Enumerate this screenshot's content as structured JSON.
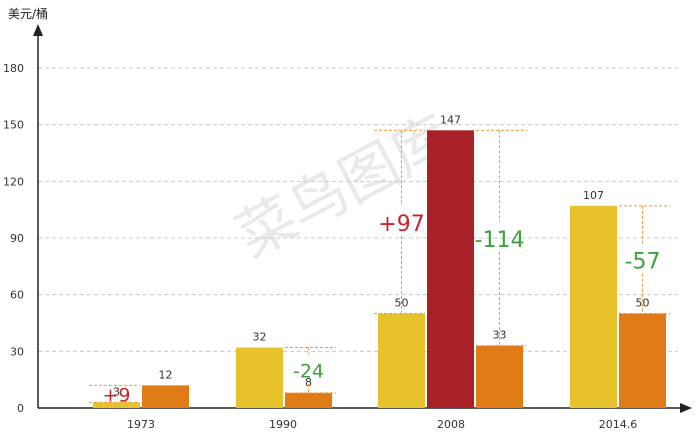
{
  "watermark": "菜鸟图库",
  "colors": {
    "yellow": "#E8C22C",
    "orange": "#DF7C18",
    "red": "#A82126",
    "plus": "#C8252B",
    "minus": "#3CA33A",
    "bracket": "#EE9A3C",
    "grid": "#C8C8C8",
    "axis": "#222222"
  },
  "chart_data": {
    "type": "bar",
    "ylabel": "美元/桶",
    "yticks": [
      0,
      30,
      60,
      90,
      120,
      150,
      180
    ],
    "ylim": [
      0,
      195
    ],
    "grid": true,
    "categories": [
      "1973",
      "1990",
      "2008",
      "2014.6"
    ],
    "groups": [
      {
        "category": "1973",
        "bars": [
          {
            "value": 3,
            "label": "3",
            "color": "yellow"
          },
          {
            "value": 12,
            "label": "12",
            "color": "orange"
          }
        ]
      },
      {
        "category": "1990",
        "bars": [
          {
            "value": 32,
            "label": "32",
            "color": "yellow"
          },
          {
            "value": 8,
            "label": "8",
            "color": "orange"
          }
        ]
      },
      {
        "category": "2008",
        "bars": [
          {
            "value": 50,
            "label": "50",
            "color": "yellow"
          },
          {
            "value": 147,
            "label": "147",
            "color": "red"
          },
          {
            "value": 33,
            "label": "33",
            "color": "orange"
          }
        ]
      },
      {
        "category": "2014.6",
        "bars": [
          {
            "value": 107,
            "label": "107",
            "color": "yellow"
          },
          {
            "value": 50,
            "label": "50",
            "color": "orange"
          }
        ]
      }
    ],
    "annotations": [
      {
        "group": 0,
        "between": [
          0,
          1
        ],
        "side": "left",
        "from": 3,
        "to": 12,
        "text": "+9",
        "sign": "plus"
      },
      {
        "group": 1,
        "between": [
          0,
          1
        ],
        "side": "right",
        "from": 32,
        "to": 8,
        "text": "-24",
        "sign": "minus"
      },
      {
        "group": 2,
        "between": [
          0,
          1
        ],
        "side": "left",
        "from": 50,
        "to": 147,
        "text": "+97",
        "sign": "plus"
      },
      {
        "group": 2,
        "between": [
          1,
          2
        ],
        "side": "right",
        "from": 147,
        "to": 33,
        "text": "-114",
        "sign": "minus"
      },
      {
        "group": 3,
        "between": [
          0,
          1
        ],
        "side": "right",
        "from": 107,
        "to": 50,
        "text": "-57",
        "sign": "minus"
      }
    ]
  }
}
